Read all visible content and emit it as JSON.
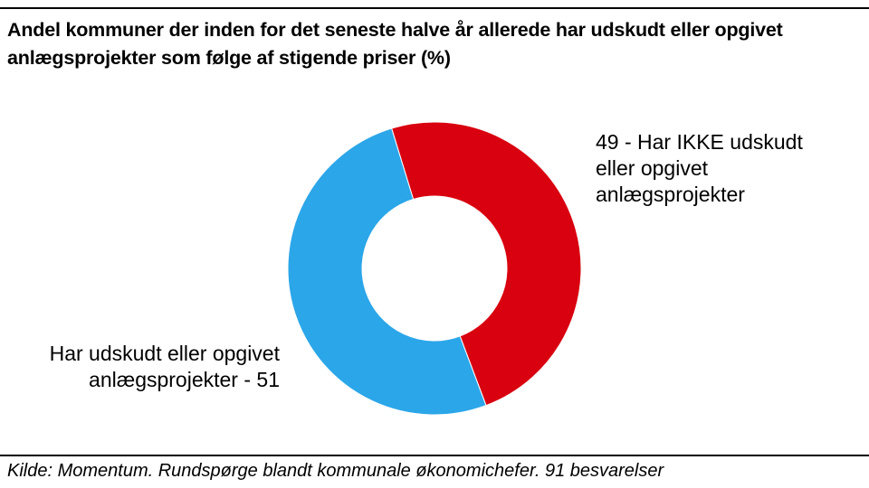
{
  "title": {
    "line1": "Andel kommuner der inden for det seneste halve år allerede har udskudt eller opgivet",
    "line2": "anlægsprojekter som følge af stigende priser (%)"
  },
  "source": "Kilde: Momentum. Rundspørge blandt kommunale økonomichefer. 91 besvarelser",
  "chart_data": {
    "type": "pie",
    "variant": "donut",
    "slices": [
      {
        "label_lines": [
          "49 - Har IKKE udskudt",
          "eller opgivet",
          "anlægsprojekter"
        ],
        "value": 49,
        "color": "#d9000f"
      },
      {
        "label_lines": [
          "Har udskudt eller opgivet",
          "anlægsprojekter - 51"
        ],
        "value": 51,
        "color": "#2ba6e9"
      }
    ],
    "legend": "none"
  }
}
